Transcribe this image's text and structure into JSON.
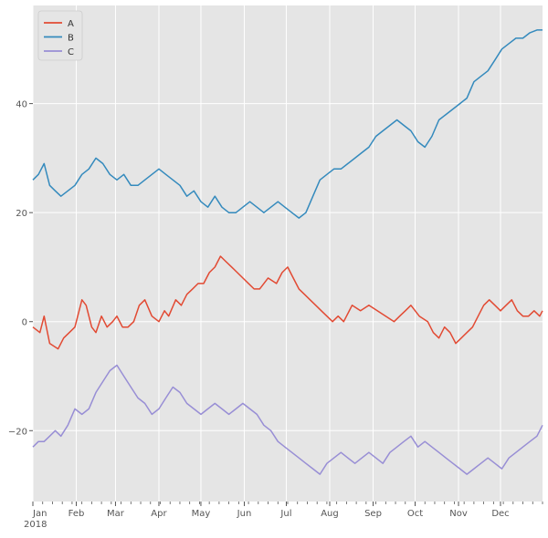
{
  "chart_data": {
    "type": "line",
    "title": "",
    "xlabel": "",
    "ylabel": "",
    "x_start": "2018-01-01",
    "x_end": "2018-12-31",
    "x_tick_labels": [
      "Jan",
      "Feb",
      "Mar",
      "Apr",
      "May",
      "Jun",
      "Jul",
      "Aug",
      "Sep",
      "Oct",
      "Nov",
      "Dec"
    ],
    "x_tick_days": [
      0,
      31,
      59,
      90,
      120,
      151,
      181,
      212,
      243,
      273,
      304,
      334
    ],
    "x_year_label": "2018",
    "y_tick_values": [
      -20,
      0,
      20,
      40
    ],
    "y_tick_labels": [
      "−20",
      "0",
      "20",
      "40"
    ],
    "ylim": [
      -33,
      58
    ],
    "xlim_days": [
      0,
      364
    ],
    "grid": true,
    "legend_position": "top-left",
    "style": "ggplot",
    "colors": {
      "plot_bg": "#e5e5e5",
      "grid": "#ffffff",
      "tick_text": "#555555"
    },
    "series": [
      {
        "name": "A",
        "color": "#e24a33",
        "x_days": [
          0,
          5,
          8,
          12,
          18,
          22,
          26,
          30,
          35,
          38,
          42,
          45,
          49,
          53,
          57,
          60,
          64,
          68,
          72,
          76,
          80,
          85,
          90,
          94,
          97,
          102,
          106,
          110,
          114,
          118,
          122,
          126,
          130,
          134,
          138,
          142,
          146,
          150,
          154,
          158,
          162,
          168,
          174,
          178,
          182,
          186,
          190,
          194,
          198,
          202,
          206,
          210,
          214,
          218,
          222,
          228,
          234,
          240,
          246,
          252,
          258,
          262,
          266,
          270,
          276,
          282,
          286,
          290,
          294,
          298,
          302,
          306,
          310,
          314,
          318,
          322,
          326,
          330,
          334,
          338,
          342,
          346,
          350,
          354,
          358,
          362,
          364
        ],
        "values": [
          -1,
          -2,
          1,
          -4,
          -5,
          -3,
          -2,
          -1,
          4,
          3,
          -1,
          -2,
          1,
          -1,
          0,
          1,
          -1,
          -1,
          0,
          3,
          4,
          1,
          0,
          2,
          1,
          4,
          3,
          5,
          6,
          7,
          7,
          9,
          10,
          12,
          11,
          10,
          9,
          8,
          7,
          6,
          6,
          8,
          7,
          9,
          10,
          8,
          6,
          5,
          4,
          3,
          2,
          1,
          0,
          1,
          0,
          3,
          2,
          3,
          2,
          1,
          0,
          1,
          2,
          3,
          1,
          0,
          -2,
          -3,
          -1,
          -2,
          -4,
          -3,
          -2,
          -1,
          1,
          3,
          4,
          3,
          2,
          3,
          4,
          2,
          1,
          1,
          2,
          1,
          2
        ]
      },
      {
        "name": "B",
        "color": "#348abd",
        "x_days": [
          0,
          4,
          8,
          12,
          16,
          20,
          25,
          30,
          35,
          40,
          45,
          50,
          55,
          60,
          65,
          70,
          75,
          80,
          85,
          90,
          95,
          100,
          105,
          110,
          115,
          120,
          125,
          130,
          135,
          140,
          145,
          150,
          155,
          160,
          165,
          170,
          175,
          180,
          185,
          190,
          195,
          200,
          205,
          210,
          215,
          220,
          225,
          230,
          235,
          240,
          245,
          250,
          255,
          260,
          265,
          270,
          275,
          280,
          285,
          290,
          295,
          300,
          305,
          310,
          315,
          320,
          325,
          330,
          335,
          340,
          345,
          350,
          355,
          360,
          364
        ],
        "values": [
          26,
          27,
          29,
          25,
          24,
          23,
          24,
          25,
          27,
          28,
          30,
          29,
          27,
          26,
          27,
          25,
          25,
          26,
          27,
          28,
          27,
          26,
          25,
          23,
          24,
          22,
          21,
          23,
          21,
          20,
          20,
          21,
          22,
          21,
          20,
          21,
          22,
          21,
          20,
          19,
          20,
          23,
          26,
          27,
          28,
          28,
          29,
          30,
          31,
          32,
          34,
          35,
          36,
          37,
          36,
          35,
          33,
          32,
          34,
          37,
          38,
          39,
          40,
          41,
          44,
          45,
          46,
          48,
          50,
          51,
          52,
          52,
          53,
          53.5,
          53.5
        ]
      },
      {
        "name": "C",
        "color": "#988ed5",
        "x_days": [
          0,
          4,
          8,
          12,
          16,
          20,
          25,
          30,
          35,
          40,
          45,
          50,
          55,
          60,
          65,
          70,
          75,
          80,
          85,
          90,
          95,
          100,
          105,
          110,
          115,
          120,
          125,
          130,
          135,
          140,
          145,
          150,
          155,
          160,
          165,
          170,
          175,
          180,
          185,
          190,
          195,
          200,
          205,
          210,
          215,
          220,
          225,
          230,
          235,
          240,
          245,
          250,
          255,
          260,
          265,
          270,
          275,
          280,
          285,
          290,
          295,
          300,
          305,
          310,
          315,
          320,
          325,
          330,
          335,
          340,
          345,
          350,
          355,
          360,
          364
        ],
        "values": [
          -23,
          -22,
          -22,
          -21,
          -20,
          -21,
          -19,
          -16,
          -17,
          -16,
          -13,
          -11,
          -9,
          -8,
          -10,
          -12,
          -14,
          -15,
          -17,
          -16,
          -14,
          -12,
          -13,
          -15,
          -16,
          -17,
          -16,
          -15,
          -16,
          -17,
          -16,
          -15,
          -16,
          -17,
          -19,
          -20,
          -22,
          -23,
          -24,
          -25,
          -26,
          -27,
          -28,
          -26,
          -25,
          -24,
          -25,
          -26,
          -25,
          -24,
          -25,
          -26,
          -24,
          -23,
          -22,
          -21,
          -23,
          -22,
          -23,
          -24,
          -25,
          -26,
          -27,
          -28,
          -27,
          -26,
          -25,
          -26,
          -27,
          -25,
          -24,
          -23,
          -22,
          -21,
          -19
        ]
      }
    ]
  }
}
